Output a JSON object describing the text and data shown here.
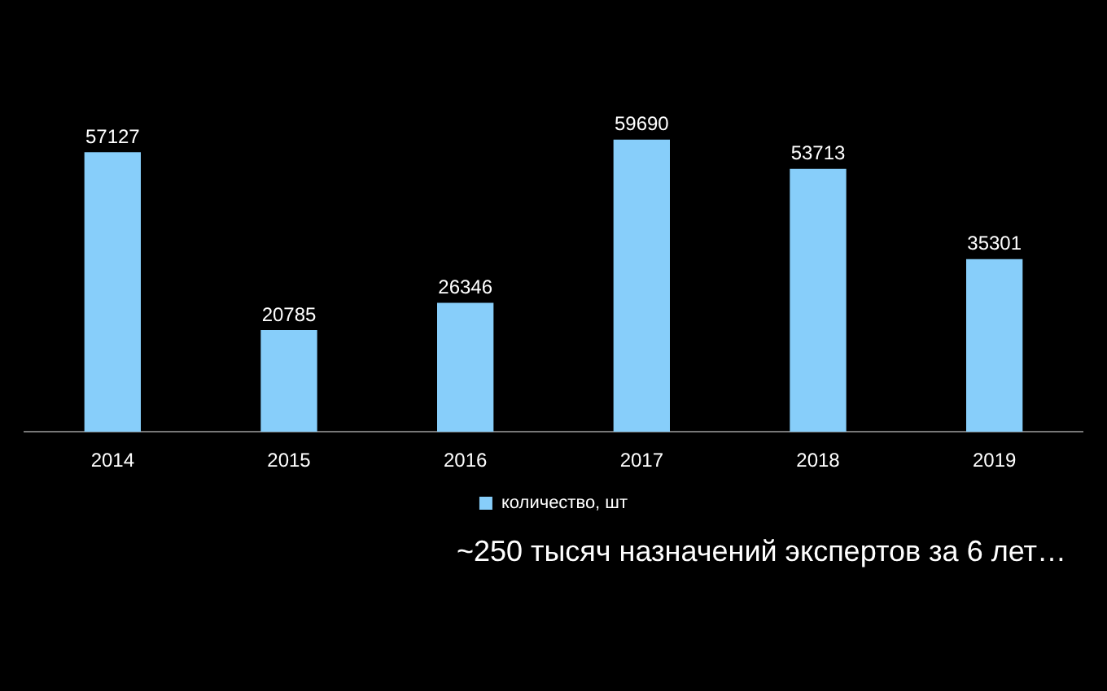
{
  "chart_data": {
    "type": "bar",
    "categories": [
      "2014",
      "2015",
      "2016",
      "2017",
      "2018",
      "2019"
    ],
    "series": [
      {
        "name": "количество, шт",
        "color": "#87cefa",
        "values": [
          57127,
          20785,
          26346,
          59690,
          53713,
          35301
        ]
      }
    ],
    "data_labels": true,
    "legend": "bottom",
    "tick_labels": "x",
    "annotations": [
      "~250 тысяч назначений экспертов за 6 лет…"
    ]
  }
}
